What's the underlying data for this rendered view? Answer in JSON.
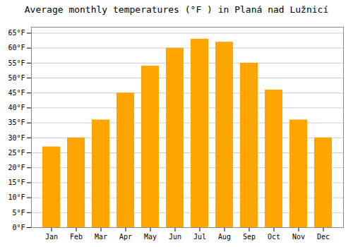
{
  "chart_data": {
    "type": "bar",
    "title": "Average monthly temperatures (°F ) in Planá nad Lužnicí",
    "categories": [
      "Jan",
      "Feb",
      "Mar",
      "Apr",
      "May",
      "Jun",
      "Jul",
      "Aug",
      "Sep",
      "Oct",
      "Nov",
      "Dec"
    ],
    "values": [
      27,
      30,
      36,
      45,
      54,
      60,
      63,
      62,
      55,
      46,
      36,
      30
    ],
    "color": "#FFA500",
    "ylim": [
      0,
      67
    ],
    "yticks": [
      {
        "value": 0,
        "label": "0°F"
      },
      {
        "value": 5,
        "label": "5°F"
      },
      {
        "value": 10,
        "label": "10°F"
      },
      {
        "value": 15,
        "label": "15°F"
      },
      {
        "value": 20,
        "label": "20°F"
      },
      {
        "value": 25,
        "label": "25°F"
      },
      {
        "value": 30,
        "label": "30°F"
      },
      {
        "value": 35,
        "label": "35°F"
      },
      {
        "value": 40,
        "label": "40°F"
      },
      {
        "value": 45,
        "label": "45°F"
      },
      {
        "value": 50,
        "label": "50°F"
      },
      {
        "value": 55,
        "label": "55°F"
      },
      {
        "value": 60,
        "label": "60°F"
      },
      {
        "value": 65,
        "label": "65°F"
      }
    ],
    "grid": true
  }
}
